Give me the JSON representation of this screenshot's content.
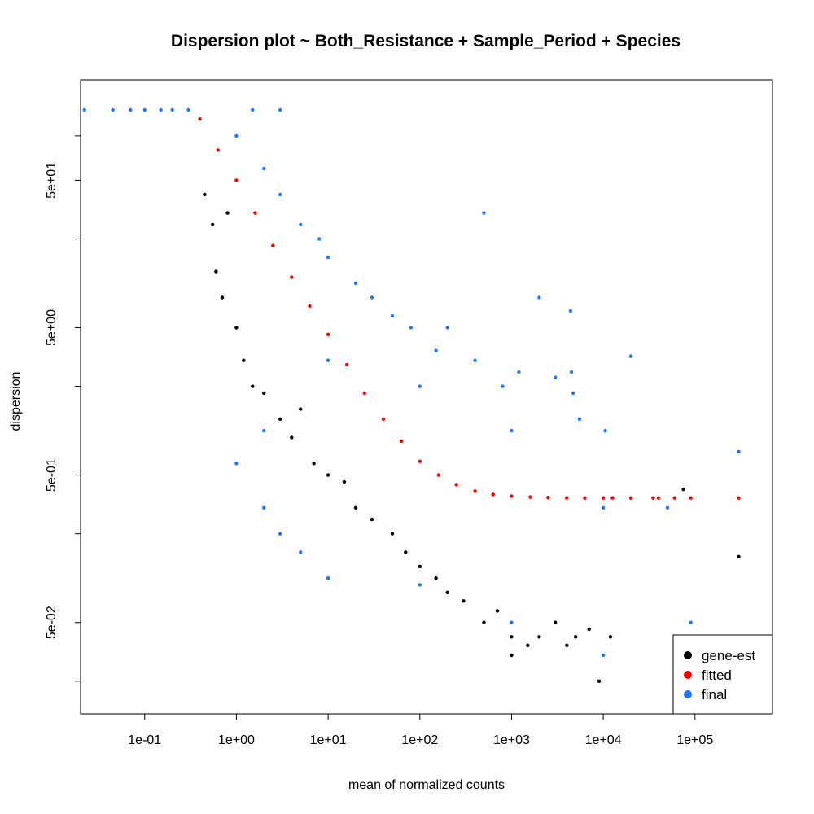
{
  "chart_data": {
    "type": "scatter",
    "title": "Dispersion plot   ~ Both_Resistance + Sample_Period + Species",
    "xlabel": "mean of normalized counts",
    "ylabel": "dispersion",
    "x_scale": "log10",
    "y_scale": "log10",
    "xlim": [
      0.02,
      700000
    ],
    "ylim": [
      0.012,
      240
    ],
    "x_ticks": [
      {
        "value": 0.1,
        "label": "1e-01"
      },
      {
        "value": 1,
        "label": "1e+00"
      },
      {
        "value": 10,
        "label": "1e+01"
      },
      {
        "value": 100,
        "label": "1e+02"
      },
      {
        "value": 1000,
        "label": "1e+03"
      },
      {
        "value": 10000,
        "label": "1e+04"
      },
      {
        "value": 100000,
        "label": "1e+05"
      }
    ],
    "y_ticks": [
      {
        "value": 0.02,
        "label": ""
      },
      {
        "value": 0.05,
        "label": "5e-02"
      },
      {
        "value": 0.2,
        "label": ""
      },
      {
        "value": 0.5,
        "label": "5e-01"
      },
      {
        "value": 2,
        "label": ""
      },
      {
        "value": 5,
        "label": "5e+00"
      },
      {
        "value": 20,
        "label": ""
      },
      {
        "value": 50,
        "label": "5e+01"
      },
      {
        "value": 100,
        "label": ""
      }
    ],
    "legend_position": "bottom-right",
    "colors": {
      "gene-est": "#000000",
      "fitted": "#ff0000",
      "final": "#1e78ff"
    },
    "series": [
      {
        "name": "gene-est",
        "color": "#000000",
        "points": [
          [
            0.45,
            40
          ],
          [
            0.55,
            25
          ],
          [
            0.6,
            12
          ],
          [
            0.7,
            8
          ],
          [
            0.8,
            30
          ],
          [
            1.0,
            5
          ],
          [
            1.2,
            3
          ],
          [
            1.5,
            2
          ],
          [
            2.0,
            1.8
          ],
          [
            3,
            1.2
          ],
          [
            4,
            0.9
          ],
          [
            5,
            1.4
          ],
          [
            7,
            0.6
          ],
          [
            10,
            0.5
          ],
          [
            15,
            0.45
          ],
          [
            20,
            0.3
          ],
          [
            30,
            0.25
          ],
          [
            50,
            0.2
          ],
          [
            70,
            0.15
          ],
          [
            100,
            0.12
          ],
          [
            150,
            0.1
          ],
          [
            200,
            0.08
          ],
          [
            300,
            0.07
          ],
          [
            500,
            0.05
          ],
          [
            700,
            0.06
          ],
          [
            1000,
            0.04
          ],
          [
            1500,
            0.035
          ],
          [
            2000,
            0.04
          ],
          [
            3000,
            0.05
          ],
          [
            5000,
            0.04
          ],
          [
            7000,
            0.045
          ],
          [
            12000,
            0.04
          ],
          [
            9000,
            0.02
          ],
          [
            1000,
            0.03
          ],
          [
            4000,
            0.035
          ],
          [
            300000,
            0.14
          ],
          [
            75000,
            0.4
          ]
        ]
      },
      {
        "name": "fitted",
        "color": "#ff0000",
        "points": [
          [
            0.25,
            250
          ],
          [
            0.4,
            130
          ],
          [
            0.63,
            80
          ],
          [
            1,
            50
          ],
          [
            1.6,
            30
          ],
          [
            2.5,
            18
          ],
          [
            4,
            11
          ],
          [
            6.3,
            7
          ],
          [
            10,
            4.5
          ],
          [
            16,
            2.8
          ],
          [
            25,
            1.8
          ],
          [
            40,
            1.2
          ],
          [
            63,
            0.85
          ],
          [
            100,
            0.62
          ],
          [
            160,
            0.5
          ],
          [
            250,
            0.43
          ],
          [
            400,
            0.39
          ],
          [
            630,
            0.37
          ],
          [
            1000,
            0.36
          ],
          [
            1600,
            0.355
          ],
          [
            2500,
            0.352
          ],
          [
            4000,
            0.35
          ],
          [
            6300,
            0.35
          ],
          [
            10000,
            0.35
          ],
          [
            12600,
            0.35
          ],
          [
            20000,
            0.35
          ],
          [
            35000,
            0.35
          ],
          [
            40000,
            0.35
          ],
          [
            60000,
            0.35
          ],
          [
            90000,
            0.35
          ],
          [
            300000,
            0.35
          ]
        ]
      },
      {
        "name": "final",
        "color": "#1e78ff",
        "points": [
          [
            0.022,
            150
          ],
          [
            0.045,
            150
          ],
          [
            0.07,
            150
          ],
          [
            0.1,
            150
          ],
          [
            0.15,
            150
          ],
          [
            0.2,
            150
          ],
          [
            0.3,
            150
          ],
          [
            1.5,
            150
          ],
          [
            3,
            150
          ],
          [
            1,
            100
          ],
          [
            2,
            60
          ],
          [
            3,
            40
          ],
          [
            5,
            25
          ],
          [
            8,
            20
          ],
          [
            10,
            15
          ],
          [
            20,
            10
          ],
          [
            30,
            8
          ],
          [
            50,
            6
          ],
          [
            80,
            5
          ],
          [
            150,
            3.5
          ],
          [
            200,
            5
          ],
          [
            400,
            3
          ],
          [
            500,
            30
          ],
          [
            800,
            2
          ],
          [
            1200,
            2.5
          ],
          [
            2000,
            8
          ],
          [
            3000,
            2.3
          ],
          [
            4400,
            6.5
          ],
          [
            4500,
            2.5
          ],
          [
            4700,
            1.8
          ],
          [
            5500,
            1.2
          ],
          [
            10500,
            1.0
          ],
          [
            20000,
            3.2
          ],
          [
            300000,
            0.72
          ],
          [
            1,
            0.6
          ],
          [
            2,
            0.3
          ],
          [
            3,
            0.2
          ],
          [
            5,
            0.15
          ],
          [
            10,
            0.1
          ],
          [
            100,
            0.09
          ],
          [
            1000,
            0.05
          ],
          [
            10000,
            0.03
          ],
          [
            2,
            1.0
          ],
          [
            10,
            3
          ],
          [
            100,
            2
          ],
          [
            1000,
            1
          ],
          [
            10000,
            0.3
          ],
          [
            50000,
            0.3
          ],
          [
            90000,
            0.05
          ]
        ]
      }
    ]
  },
  "legend": {
    "items": [
      {
        "label": "gene-est",
        "color": "#000000"
      },
      {
        "label": "fitted",
        "color": "#ff0000"
      },
      {
        "label": "final",
        "color": "#1e78ff"
      }
    ]
  }
}
